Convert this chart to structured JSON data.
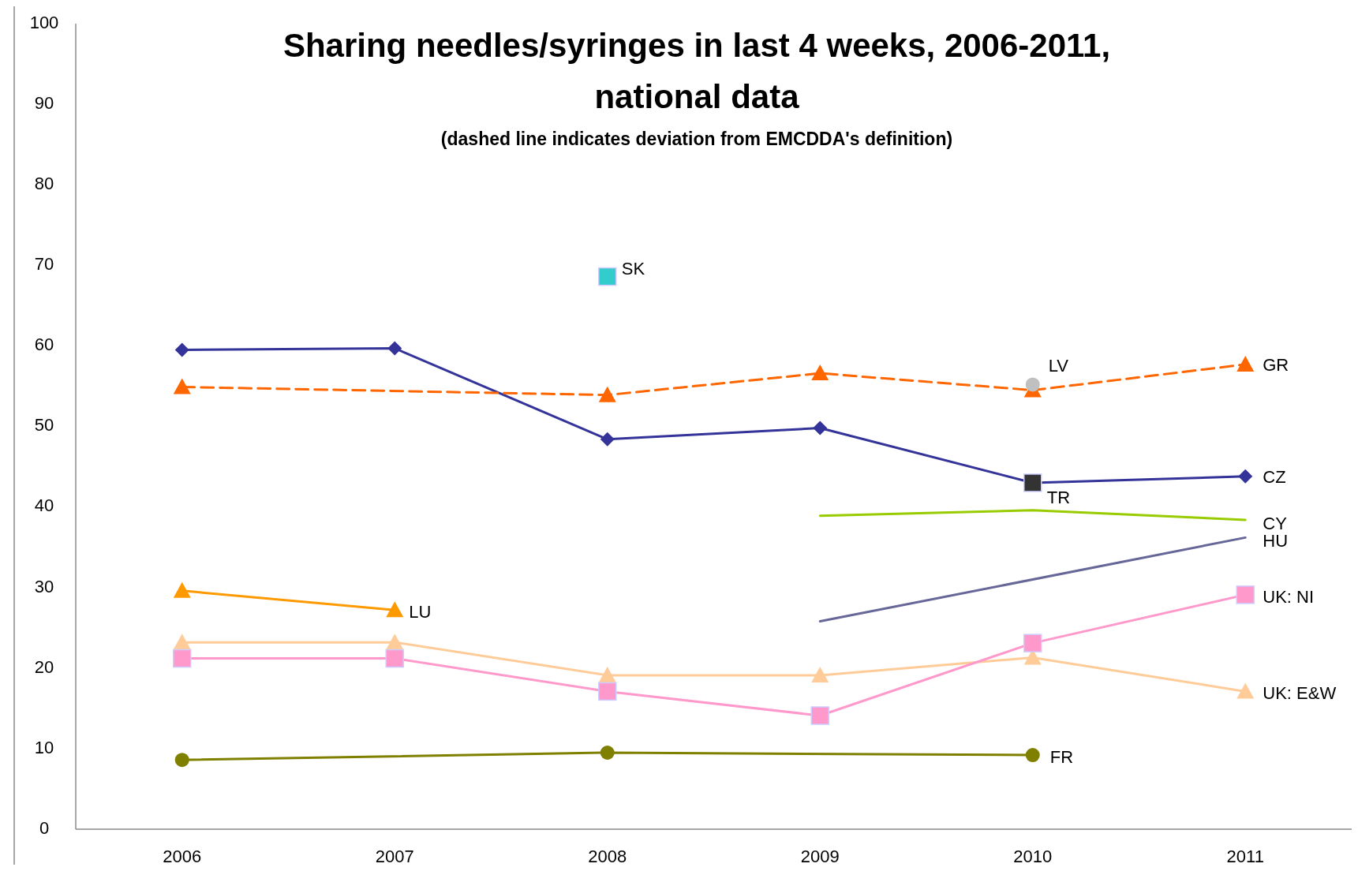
{
  "chart_data": {
    "type": "line",
    "title": "Sharing needles/syringes in last 4 weeks, 2006-2011, national data",
    "subtitle": "(dashed line indicates deviation from EMCDDA's definition)",
    "categories": [
      "2006",
      "2007",
      "2008",
      "2009",
      "2010",
      "2011"
    ],
    "ylim": [
      0,
      100
    ],
    "yticks": [
      0,
      10,
      20,
      30,
      40,
      50,
      60,
      70,
      80,
      90,
      100
    ],
    "grid": false,
    "series": [
      {
        "name": "CZ",
        "color": "#333399",
        "marker": "diamond",
        "line_style": "solid",
        "values": [
          59.5,
          59.7,
          48.4,
          49.8,
          43.0,
          43.8
        ]
      },
      {
        "name": "GR",
        "color": "#ff6600",
        "marker": "triangle",
        "line_style": "dashed",
        "values": [
          54.9,
          null,
          53.9,
          56.6,
          54.5,
          57.7
        ]
      },
      {
        "name": "LV",
        "color": "#c0c0c0",
        "marker": "circle",
        "values": [
          null,
          null,
          null,
          null,
          55.2,
          null
        ]
      },
      {
        "name": "SK",
        "color": "#33cccc",
        "marker": "square",
        "values": [
          null,
          null,
          68.6,
          null,
          null,
          null
        ]
      },
      {
        "name": "TR",
        "color": "#333333",
        "marker": "square",
        "values": [
          null,
          null,
          null,
          null,
          43.0,
          null
        ]
      },
      {
        "name": "CY",
        "color": "#99cc00",
        "marker": "none",
        "line_style": "solid",
        "values": [
          null,
          null,
          null,
          38.9,
          39.6,
          38.4
        ]
      },
      {
        "name": "HU",
        "color": "#666699",
        "marker": "none",
        "line_style": "solid",
        "values": [
          null,
          null,
          null,
          25.8,
          null,
          36.2
        ]
      },
      {
        "name": "LU",
        "color": "#ff9900",
        "marker": "triangle",
        "line_style": "solid",
        "values": [
          29.6,
          27.2,
          null,
          null,
          null,
          null
        ]
      },
      {
        "name": "UK: E&W",
        "color": "#ffcc99",
        "marker": "triangle",
        "line_style": "solid",
        "values": [
          23.2,
          23.2,
          19.1,
          19.1,
          21.3,
          17.1
        ]
      },
      {
        "name": "UK: NI",
        "color": "#ff99cc",
        "marker": "square",
        "line_style": "solid",
        "values": [
          21.2,
          21.2,
          17.1,
          14.1,
          23.1,
          29.1
        ]
      },
      {
        "name": "FR",
        "color": "#808000",
        "marker": "circle",
        "line_style": "solid",
        "values": [
          8.6,
          null,
          9.5,
          null,
          9.2,
          null
        ]
      }
    ]
  }
}
